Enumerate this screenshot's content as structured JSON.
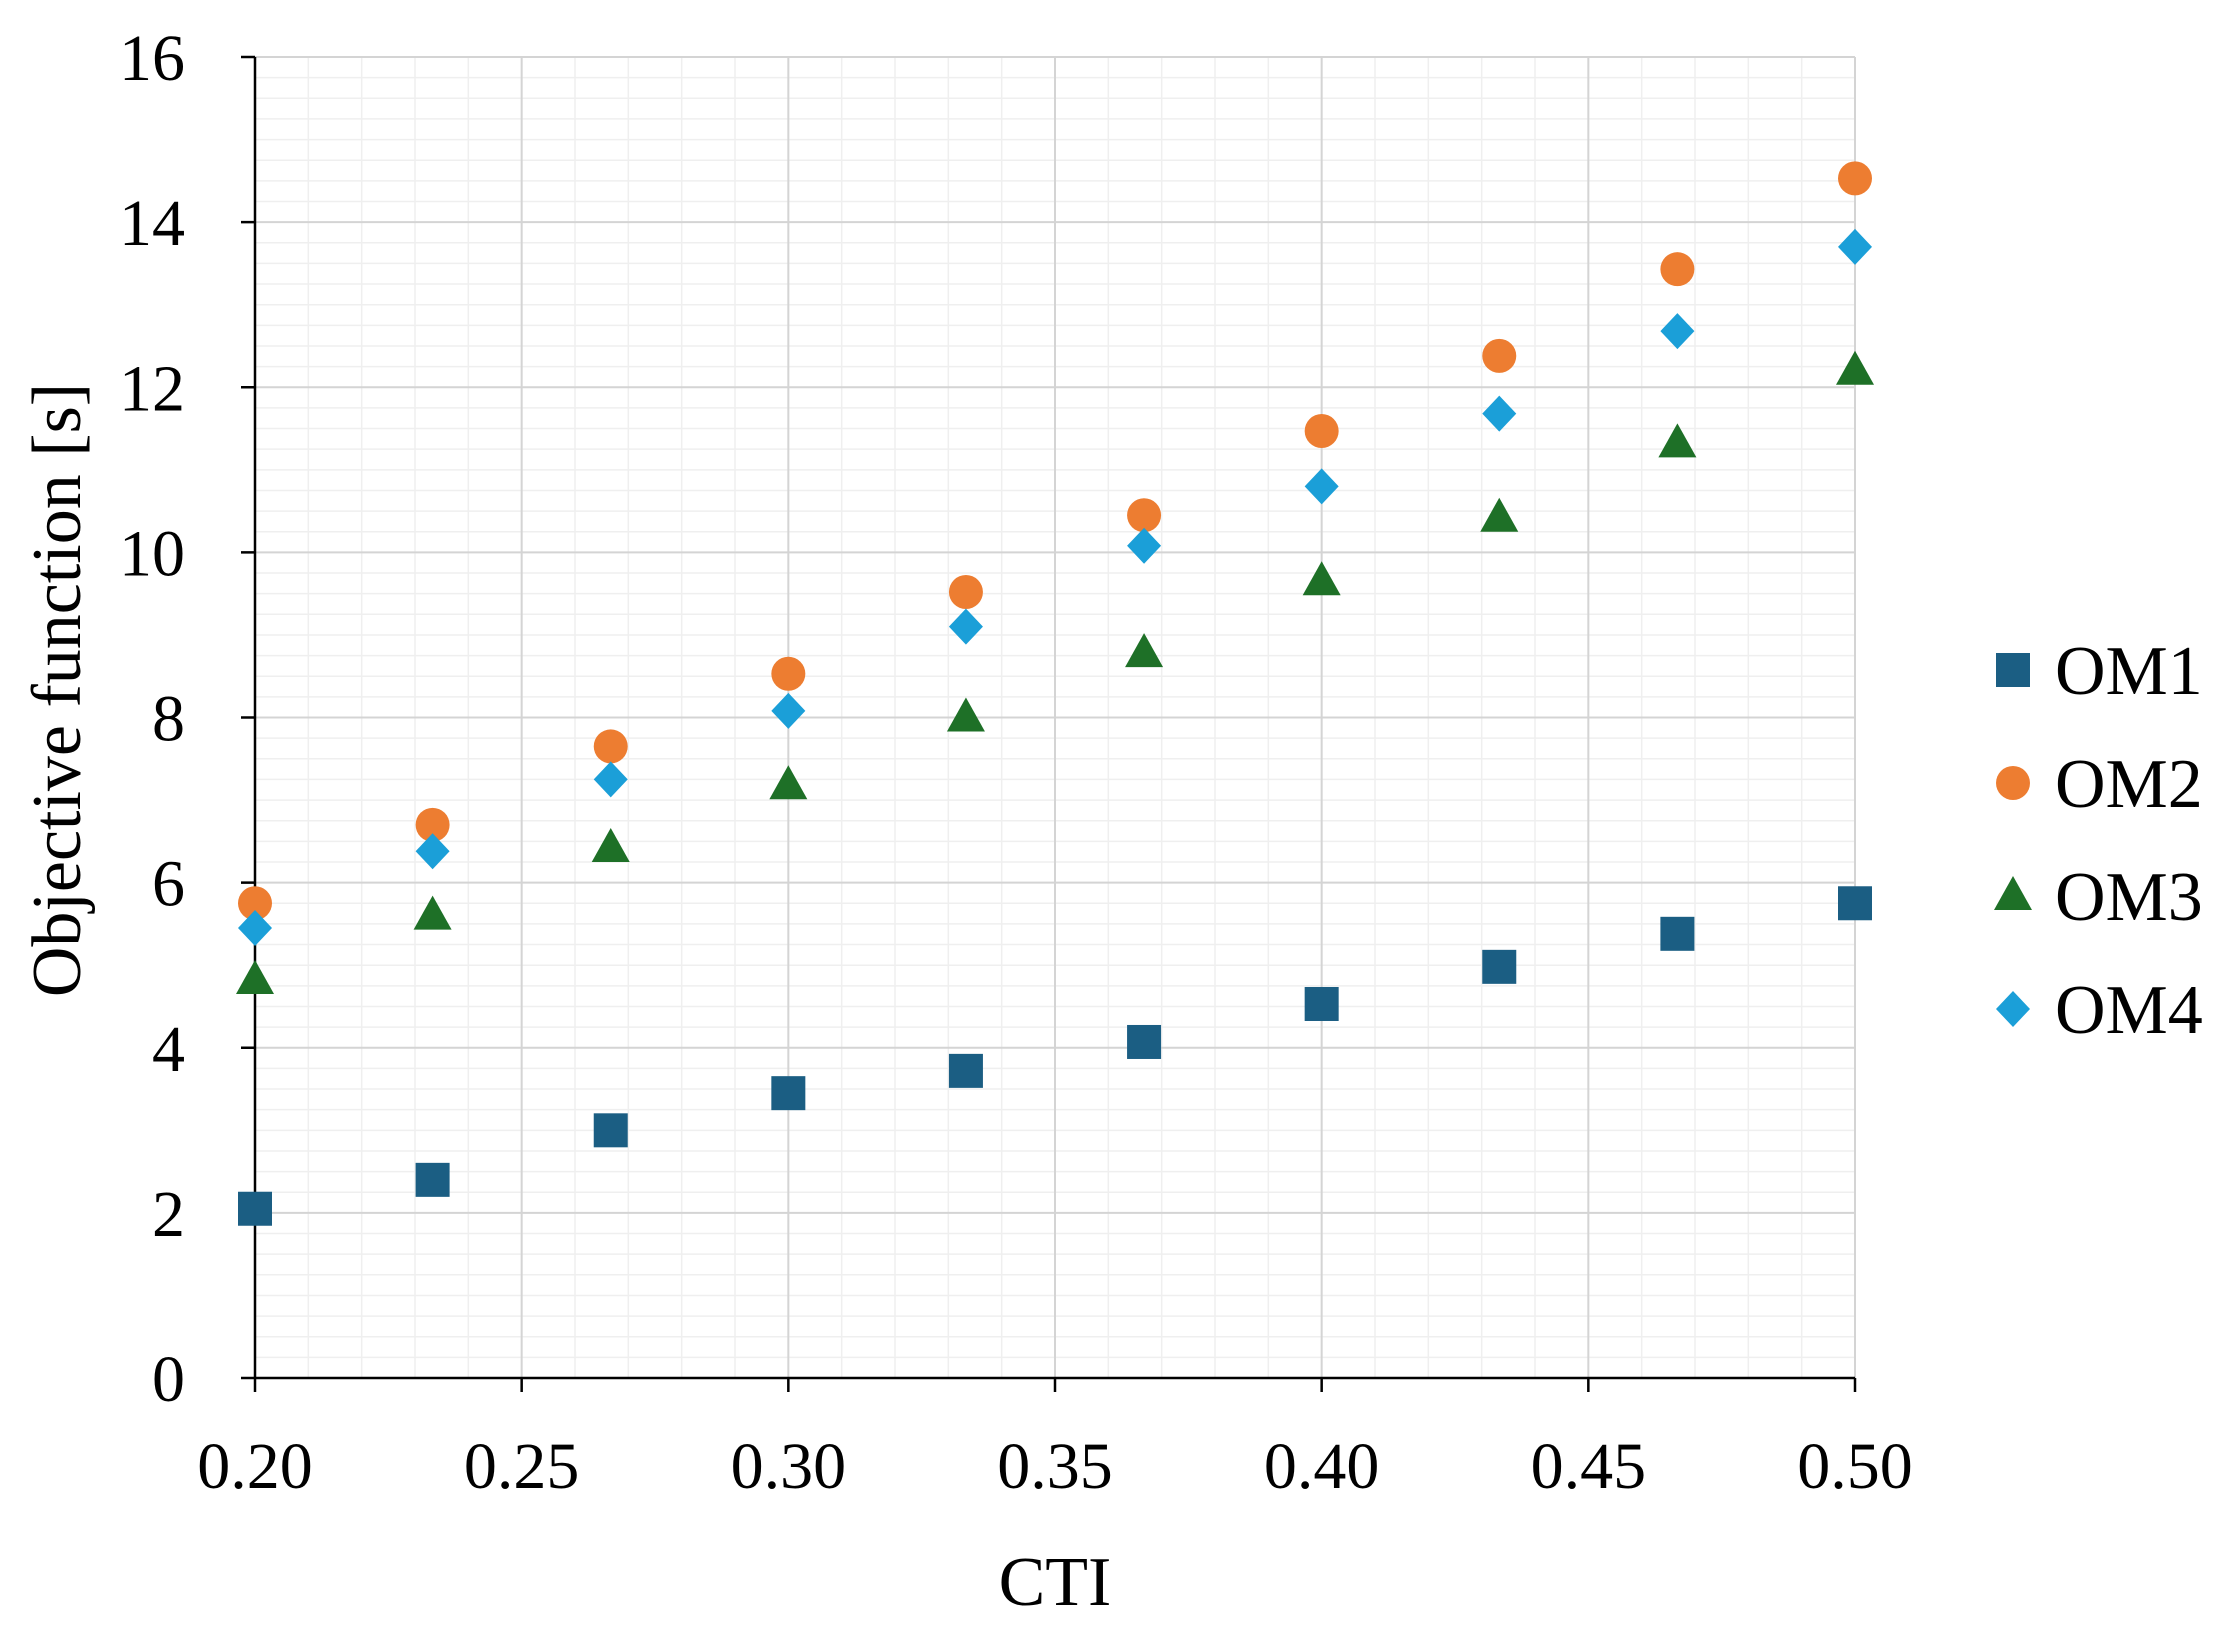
{
  "chart_data": {
    "type": "scatter",
    "title": "",
    "xlabel": "CTI",
    "ylabel": "Objective function [s]",
    "xlim": [
      0.2,
      0.5
    ],
    "ylim": [
      0,
      16
    ],
    "x_ticks": [
      "0.20",
      "0.25",
      "0.30",
      "0.35",
      "0.40",
      "0.45",
      "0.50"
    ],
    "y_ticks": [
      "0",
      "2",
      "4",
      "6",
      "8",
      "10",
      "12",
      "14",
      "16"
    ],
    "grid": true,
    "legend_position": "right",
    "x": [
      0.2,
      0.2333,
      0.2667,
      0.3,
      0.3333,
      0.3667,
      0.4,
      0.4333,
      0.4667,
      0.5
    ],
    "series": [
      {
        "name": "OM1",
        "marker": "square",
        "color": "#1b5e83",
        "values": [
          2.05,
          2.4,
          3.0,
          3.45,
          3.72,
          4.07,
          4.53,
          4.98,
          5.38,
          5.75
        ]
      },
      {
        "name": "OM2",
        "marker": "circle",
        "color": "#ed7d31",
        "values": [
          5.75,
          6.7,
          7.65,
          8.53,
          9.52,
          10.45,
          11.47,
          12.38,
          13.43,
          14.53
        ]
      },
      {
        "name": "OM3",
        "marker": "triangle",
        "color": "#1e7027",
        "values": [
          4.82,
          5.6,
          6.42,
          7.18,
          8.0,
          8.78,
          9.65,
          10.42,
          11.32,
          12.2
        ]
      },
      {
        "name": "OM4",
        "marker": "diamond",
        "color": "#1b9fd8",
        "values": [
          5.45,
          6.38,
          7.25,
          8.08,
          9.1,
          10.08,
          10.8,
          11.68,
          12.68,
          13.7
        ]
      }
    ]
  }
}
